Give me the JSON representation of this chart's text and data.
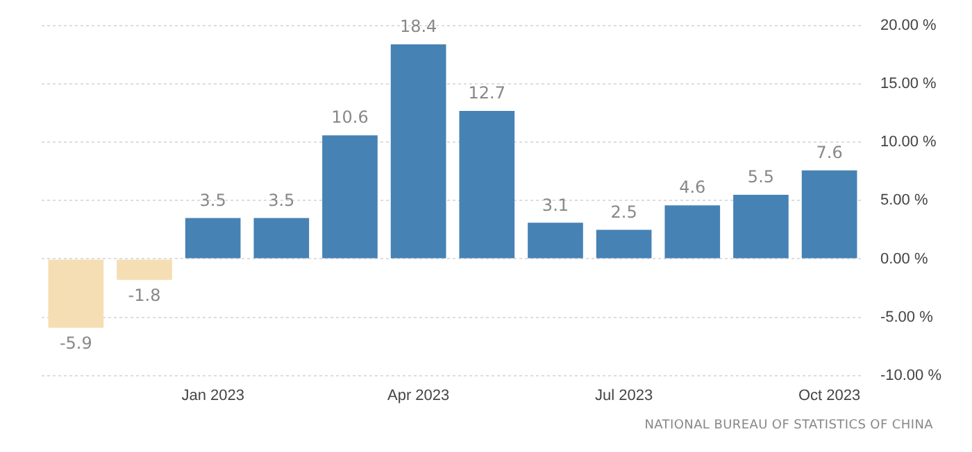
{
  "chart_data": {
    "type": "bar",
    "categories": [
      null,
      null,
      "Jan 2023",
      null,
      null,
      "Apr 2023",
      null,
      null,
      "Jul 2023",
      null,
      null,
      "Oct 2023"
    ],
    "values": [
      -5.9,
      -1.8,
      3.5,
      3.5,
      10.6,
      18.4,
      12.7,
      3.1,
      2.5,
      4.6,
      5.5,
      7.6
    ],
    "colors": [
      "#f5deb3",
      "#f5deb3",
      "#4682b4",
      "#4682b4",
      "#4682b4",
      "#4682b4",
      "#4682b4",
      "#4682b4",
      "#4682b4",
      "#4682b4",
      "#4682b4",
      "#4682b4"
    ],
    "ylim": [
      -10,
      20
    ],
    "yticks": [
      {
        "value": 20,
        "label": "20.00 %"
      },
      {
        "value": 15,
        "label": "15.00 %"
      },
      {
        "value": 10,
        "label": "10.00 %"
      },
      {
        "value": 5,
        "label": "5.00 %"
      },
      {
        "value": 0,
        "label": "0.00 %"
      },
      {
        "value": -5,
        "label": "-5.00 %"
      },
      {
        "value": -10,
        "label": "-10.00 %"
      }
    ],
    "grid": "y",
    "data_labels": true,
    "legend": false,
    "annotations": [
      "NATIONAL BUREAU OF STATISTICS OF CHINA"
    ]
  }
}
